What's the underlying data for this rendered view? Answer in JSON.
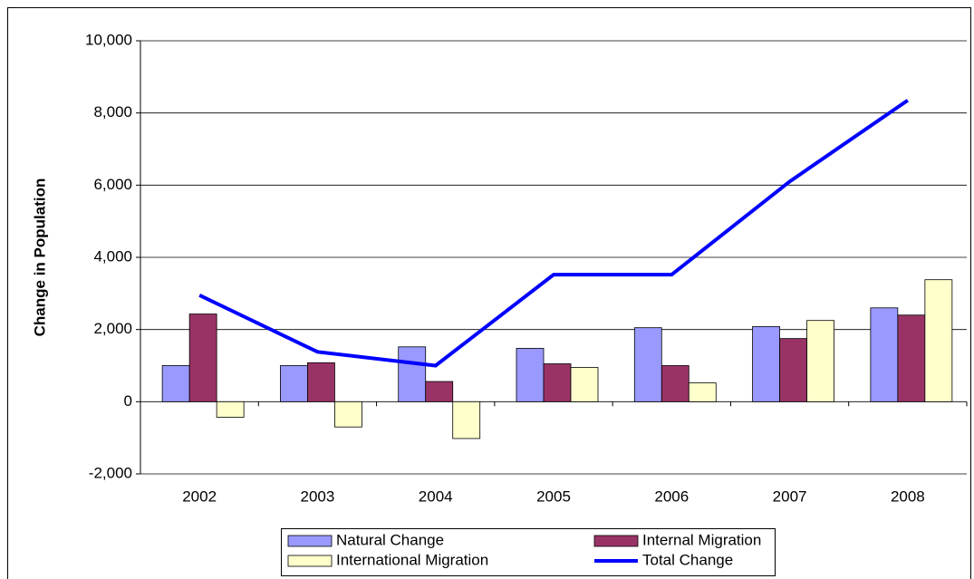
{
  "chart_data": {
    "type": "bar",
    "y_label": "Change in Population",
    "categories": [
      "2002",
      "2003",
      "2004",
      "2005",
      "2006",
      "2007",
      "2008"
    ],
    "series": [
      {
        "name": "Natural Change",
        "color": "#9999ff",
        "values": [
          1000,
          1000,
          1520,
          1480,
          2050,
          2080,
          2600
        ]
      },
      {
        "name": "Internal Migration",
        "color": "#993366",
        "values": [
          2430,
          1080,
          560,
          1050,
          1000,
          1750,
          2400
        ]
      },
      {
        "name": "International Migration",
        "color": "#ffffcc",
        "values": [
          -430,
          -700,
          -1020,
          950,
          520,
          2250,
          3380
        ]
      },
      {
        "name": "Total Change",
        "color": "#0000ff",
        "type": "line",
        "values": [
          2950,
          1380,
          1000,
          3520,
          3520,
          6100,
          8350
        ]
      }
    ],
    "ylim": [
      -2000,
      10000
    ],
    "yticks": [
      {
        "value": -2000,
        "label": "-2,000"
      },
      0,
      {
        "value": 2000,
        "label": "2,000"
      },
      {
        "value": 4000,
        "label": "4,000"
      },
      {
        "value": 6000,
        "label": "6,000"
      },
      {
        "value": 8000,
        "label": "8,000"
      },
      {
        "value": 10000,
        "label": "10,000"
      }
    ],
    "grid": true
  }
}
